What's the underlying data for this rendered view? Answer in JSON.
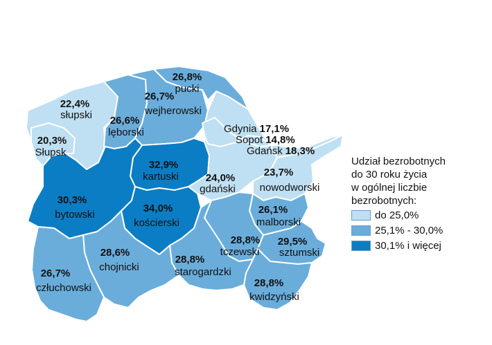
{
  "colors": {
    "low": "#bfdff2",
    "mid": "#6aaddb",
    "high": "#0b7dc4",
    "border": "#ffffff"
  },
  "map": {
    "regions": [
      {
        "name": "słupski",
        "value": "22,4%",
        "class": "low"
      },
      {
        "name": "Słupsk",
        "value": "20,3%",
        "class": "low"
      },
      {
        "name": "lęborski",
        "value": "26,6%",
        "class": "mid"
      },
      {
        "name": "wejherowski",
        "value": "26,7%",
        "class": "mid"
      },
      {
        "name": "pucki",
        "value": "26,8%",
        "class": "mid"
      },
      {
        "name": "kartuski",
        "value": "32,9%",
        "class": "high"
      },
      {
        "name": "bytowski",
        "value": "30,3%",
        "class": "high"
      },
      {
        "name": "kościerski",
        "value": "34,0%",
        "class": "high"
      },
      {
        "name": "gdański",
        "value": "24,0%",
        "class": "low"
      },
      {
        "name": "nowodworski",
        "value": "23,7%",
        "class": "low"
      },
      {
        "name": "malborski",
        "value": "26,1%",
        "class": "mid"
      },
      {
        "name": "tczewski",
        "value": "28,8%",
        "class": "mid"
      },
      {
        "name": "sztumski",
        "value": "29,5%",
        "class": "mid"
      },
      {
        "name": "kwidzyński",
        "value": "28,8%",
        "class": "mid"
      },
      {
        "name": "starogardzki",
        "value": "28,8%",
        "class": "mid"
      },
      {
        "name": "chojnicki",
        "value": "28,6%",
        "class": "mid"
      },
      {
        "name": "człuchowski",
        "value": "26,7%",
        "class": "mid"
      }
    ],
    "cities": [
      {
        "name": "Gdynia",
        "value": "17,1%",
        "class": "low"
      },
      {
        "name": "Sopot",
        "value": "14,8%",
        "class": "low"
      },
      {
        "name": "Gdańsk",
        "value": "18,3%",
        "class": "low"
      }
    ]
  },
  "legend": {
    "title_lines": [
      "Udział bezrobotnych",
      "do 30 roku życia",
      "w ogólnej liczbie",
      "bezrobotnych:"
    ],
    "items": [
      {
        "label": "do 25,0%",
        "class": "low"
      },
      {
        "label": "25,1% - 30,0%",
        "class": "mid"
      },
      {
        "label": "30,1% i więcej",
        "class": "high"
      }
    ]
  }
}
